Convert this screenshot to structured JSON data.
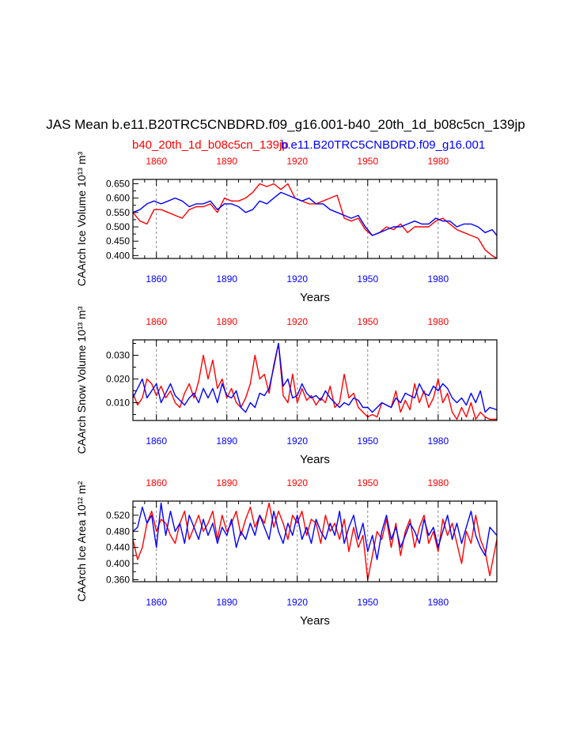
{
  "title": "JAS Mean b.e11.B20TRC5CNBDRD.f09_g16.001-b40_20th_1d_b08c5cn_139jp",
  "legend": {
    "red_name": "b40_20th_1d_b08c5cn_139jp",
    "blue_name": "b.e11.B20TRC5CNBDRD.f09_g16.001"
  },
  "colors": {
    "red": "#ff0000",
    "blue": "#0000ff",
    "axis": "#000000",
    "grid": "#888888"
  },
  "chart_data": [
    {
      "type": "line",
      "title": "",
      "xlabel": "Years",
      "ylabel": "CAArch Ice Volume 10¹³ m³",
      "xlim": [
        1850,
        2005
      ],
      "ylim": [
        0.39,
        0.665
      ],
      "xticks": [
        "1860",
        "1890",
        "1920",
        "1950",
        "1980"
      ],
      "yticks": [
        "0.400",
        "0.450",
        "0.500",
        "0.550",
        "0.600",
        "0.650"
      ],
      "grid_x": [
        1860,
        1890,
        1920,
        1950,
        1980
      ],
      "series": [
        {
          "name": "b40_20th_1d_b08c5cn_139jp",
          "color": "red",
          "x": [
            1850,
            1853,
            1856,
            1859,
            1862,
            1865,
            1868,
            1871,
            1874,
            1877,
            1880,
            1883,
            1886,
            1889,
            1892,
            1895,
            1898,
            1901,
            1904,
            1907,
            1910,
            1913,
            1916,
            1919,
            1922,
            1925,
            1928,
            1931,
            1934,
            1937,
            1940,
            1943,
            1946,
            1949,
            1952,
            1955,
            1958,
            1961,
            1964,
            1967,
            1970,
            1973,
            1976,
            1979,
            1982,
            1985,
            1988,
            1991,
            1994,
            1997,
            2000,
            2003,
            2005
          ],
          "y": [
            0.55,
            0.52,
            0.51,
            0.56,
            0.56,
            0.55,
            0.54,
            0.53,
            0.56,
            0.57,
            0.57,
            0.58,
            0.55,
            0.6,
            0.59,
            0.59,
            0.6,
            0.62,
            0.65,
            0.64,
            0.65,
            0.63,
            0.65,
            0.6,
            0.59,
            0.58,
            0.58,
            0.59,
            0.6,
            0.61,
            0.53,
            0.52,
            0.53,
            0.49,
            0.47,
            0.48,
            0.5,
            0.49,
            0.51,
            0.48,
            0.5,
            0.5,
            0.5,
            0.52,
            0.53,
            0.51,
            0.49,
            0.48,
            0.47,
            0.46,
            0.42,
            0.4,
            0.39
          ]
        },
        {
          "name": "b.e11.B20TRC5CNBDRD.f09_g16.001",
          "color": "blue",
          "x": [
            1850,
            1853,
            1856,
            1859,
            1862,
            1865,
            1868,
            1871,
            1874,
            1877,
            1880,
            1883,
            1886,
            1889,
            1892,
            1895,
            1898,
            1901,
            1904,
            1907,
            1910,
            1913,
            1916,
            1919,
            1922,
            1925,
            1928,
            1931,
            1934,
            1937,
            1940,
            1943,
            1946,
            1949,
            1952,
            1955,
            1958,
            1961,
            1964,
            1967,
            1970,
            1973,
            1976,
            1979,
            1982,
            1985,
            1988,
            1991,
            1994,
            1997,
            2000,
            2003,
            2005
          ],
          "y": [
            0.55,
            0.56,
            0.58,
            0.59,
            0.58,
            0.59,
            0.6,
            0.59,
            0.57,
            0.58,
            0.58,
            0.59,
            0.56,
            0.58,
            0.58,
            0.57,
            0.55,
            0.56,
            0.59,
            0.58,
            0.6,
            0.62,
            0.61,
            0.6,
            0.59,
            0.6,
            0.58,
            0.58,
            0.56,
            0.55,
            0.54,
            0.53,
            0.54,
            0.5,
            0.47,
            0.48,
            0.49,
            0.5,
            0.5,
            0.51,
            0.52,
            0.51,
            0.51,
            0.53,
            0.52,
            0.52,
            0.5,
            0.51,
            0.51,
            0.5,
            0.48,
            0.49,
            0.47
          ]
        }
      ]
    },
    {
      "type": "line",
      "title": "",
      "xlabel": "Years",
      "ylabel": "CAArch Snow Volume 10¹³ m³",
      "xlim": [
        1850,
        2005
      ],
      "ylim": [
        0.0025,
        0.0365
      ],
      "xticks": [
        "1860",
        "1890",
        "1920",
        "1950",
        "1980"
      ],
      "yticks": [
        "0.010",
        "0.020",
        "0.030"
      ],
      "grid_x": [
        1860,
        1890,
        1920,
        1950,
        1980
      ],
      "series": [
        {
          "name": "b40_20th_1d_b08c5cn_139jp",
          "color": "red",
          "x": [
            1850,
            1852,
            1854,
            1856,
            1858,
            1860,
            1862,
            1864,
            1866,
            1868,
            1870,
            1872,
            1874,
            1876,
            1878,
            1880,
            1882,
            1884,
            1886,
            1888,
            1890,
            1892,
            1894,
            1896,
            1898,
            1900,
            1902,
            1904,
            1906,
            1908,
            1910,
            1912,
            1914,
            1916,
            1918,
            1920,
            1922,
            1924,
            1926,
            1928,
            1930,
            1932,
            1934,
            1936,
            1938,
            1940,
            1942,
            1944,
            1946,
            1948,
            1950,
            1952,
            1954,
            1956,
            1958,
            1960,
            1962,
            1964,
            1966,
            1968,
            1970,
            1972,
            1974,
            1976,
            1978,
            1980,
            1982,
            1984,
            1986,
            1988,
            1990,
            1992,
            1994,
            1996,
            1998,
            2000,
            2002,
            2005
          ],
          "y": [
            0.014,
            0.009,
            0.012,
            0.02,
            0.018,
            0.013,
            0.017,
            0.012,
            0.015,
            0.01,
            0.008,
            0.014,
            0.018,
            0.012,
            0.019,
            0.03,
            0.02,
            0.028,
            0.016,
            0.02,
            0.012,
            0.016,
            0.01,
            0.008,
            0.012,
            0.018,
            0.03,
            0.02,
            0.022,
            0.014,
            0.026,
            0.035,
            0.013,
            0.01,
            0.022,
            0.01,
            0.016,
            0.011,
            0.013,
            0.009,
            0.012,
            0.01,
            0.017,
            0.008,
            0.01,
            0.022,
            0.012,
            0.014,
            0.008,
            0.006,
            0.004,
            0.005,
            0.004,
            0.01,
            0.009,
            0.008,
            0.015,
            0.006,
            0.011,
            0.007,
            0.018,
            0.01,
            0.015,
            0.008,
            0.012,
            0.02,
            0.01,
            0.014,
            0.006,
            0.003,
            0.008,
            0.004,
            0.01,
            0.003,
            0.006,
            0.004,
            0.003,
            0.003
          ]
        },
        {
          "name": "b.e11.B20TRC5CNBDRD.f09_g16.001",
          "color": "blue",
          "x": [
            1850,
            1852,
            1854,
            1856,
            1858,
            1860,
            1862,
            1864,
            1866,
            1868,
            1870,
            1872,
            1874,
            1876,
            1878,
            1880,
            1882,
            1884,
            1886,
            1888,
            1890,
            1892,
            1894,
            1896,
            1898,
            1900,
            1902,
            1904,
            1906,
            1908,
            1910,
            1912,
            1914,
            1916,
            1918,
            1920,
            1922,
            1924,
            1926,
            1928,
            1930,
            1932,
            1934,
            1936,
            1938,
            1940,
            1942,
            1944,
            1946,
            1948,
            1950,
            1952,
            1954,
            1956,
            1958,
            1960,
            1962,
            1964,
            1966,
            1968,
            1970,
            1972,
            1974,
            1976,
            1978,
            1980,
            1982,
            1984,
            1986,
            1988,
            1990,
            1992,
            1994,
            1996,
            1998,
            2000,
            2002,
            2005
          ],
          "y": [
            0.012,
            0.016,
            0.02,
            0.012,
            0.015,
            0.018,
            0.01,
            0.014,
            0.018,
            0.013,
            0.011,
            0.009,
            0.012,
            0.014,
            0.01,
            0.016,
            0.012,
            0.016,
            0.01,
            0.018,
            0.013,
            0.012,
            0.015,
            0.008,
            0.006,
            0.01,
            0.008,
            0.014,
            0.013,
            0.016,
            0.025,
            0.035,
            0.017,
            0.02,
            0.012,
            0.013,
            0.018,
            0.014,
            0.012,
            0.013,
            0.011,
            0.015,
            0.012,
            0.01,
            0.008,
            0.01,
            0.009,
            0.012,
            0.011,
            0.008,
            0.008,
            0.006,
            0.008,
            0.01,
            0.009,
            0.008,
            0.012,
            0.01,
            0.014,
            0.013,
            0.012,
            0.018,
            0.014,
            0.013,
            0.017,
            0.015,
            0.018,
            0.016,
            0.012,
            0.01,
            0.012,
            0.009,
            0.014,
            0.01,
            0.015,
            0.006,
            0.008,
            0.007
          ]
        }
      ]
    },
    {
      "type": "line",
      "title": "",
      "xlabel": "Years",
      "ylabel": "CAArch Ice Area 10¹² m²",
      "xlim": [
        1850,
        2005
      ],
      "ylim": [
        0.355,
        0.555
      ],
      "xticks": [
        "1860",
        "1890",
        "1920",
        "1950",
        "1980"
      ],
      "yticks": [
        "0.360",
        "0.400",
        "0.440",
        "0.480",
        "0.520"
      ],
      "grid_x": [
        1860,
        1890,
        1920,
        1950,
        1980
      ],
      "series": [
        {
          "name": "b40_20th_1d_b08c5cn_139jp",
          "color": "red",
          "x": [
            1850,
            1852,
            1854,
            1856,
            1858,
            1860,
            1862,
            1864,
            1866,
            1868,
            1870,
            1872,
            1874,
            1876,
            1878,
            1880,
            1882,
            1884,
            1886,
            1888,
            1890,
            1892,
            1894,
            1896,
            1898,
            1900,
            1902,
            1904,
            1906,
            1908,
            1910,
            1912,
            1914,
            1916,
            1918,
            1920,
            1922,
            1924,
            1926,
            1928,
            1930,
            1932,
            1934,
            1936,
            1938,
            1940,
            1942,
            1944,
            1946,
            1948,
            1950,
            1952,
            1954,
            1956,
            1958,
            1960,
            1962,
            1964,
            1966,
            1968,
            1970,
            1972,
            1974,
            1976,
            1978,
            1980,
            1982,
            1984,
            1986,
            1988,
            1990,
            1992,
            1994,
            1996,
            1998,
            2000,
            2002,
            2005
          ],
          "y": [
            0.46,
            0.41,
            0.44,
            0.5,
            0.53,
            0.48,
            0.51,
            0.5,
            0.47,
            0.45,
            0.5,
            0.53,
            0.46,
            0.49,
            0.52,
            0.48,
            0.5,
            0.53,
            0.46,
            0.52,
            0.48,
            0.5,
            0.53,
            0.47,
            0.51,
            0.54,
            0.49,
            0.52,
            0.5,
            0.55,
            0.49,
            0.53,
            0.5,
            0.46,
            0.52,
            0.5,
            0.53,
            0.47,
            0.51,
            0.5,
            0.45,
            0.52,
            0.48,
            0.5,
            0.46,
            0.51,
            0.43,
            0.49,
            0.44,
            0.47,
            0.36,
            0.42,
            0.48,
            0.46,
            0.51,
            0.44,
            0.5,
            0.42,
            0.48,
            0.51,
            0.44,
            0.49,
            0.52,
            0.45,
            0.48,
            0.43,
            0.51,
            0.47,
            0.5,
            0.45,
            0.4,
            0.48,
            0.45,
            0.52,
            0.46,
            0.43,
            0.37,
            0.46
          ]
        },
        {
          "name": "b.e11.B20TRC5CNBDRD.f09_g16.001",
          "color": "blue",
          "x": [
            1850,
            1852,
            1854,
            1856,
            1858,
            1860,
            1862,
            1864,
            1866,
            1868,
            1870,
            1872,
            1874,
            1876,
            1878,
            1880,
            1882,
            1884,
            1886,
            1888,
            1890,
            1892,
            1894,
            1896,
            1898,
            1900,
            1902,
            1904,
            1906,
            1908,
            1910,
            1912,
            1914,
            1916,
            1918,
            1920,
            1922,
            1924,
            1926,
            1928,
            1930,
            1932,
            1934,
            1936,
            1938,
            1940,
            1942,
            1944,
            1946,
            1948,
            1950,
            1952,
            1954,
            1956,
            1958,
            1960,
            1962,
            1964,
            1966,
            1968,
            1970,
            1972,
            1974,
            1976,
            1978,
            1980,
            1982,
            1984,
            1986,
            1988,
            1990,
            1992,
            1994,
            1996,
            1998,
            2000,
            2002,
            2005
          ],
          "y": [
            0.48,
            0.49,
            0.54,
            0.5,
            0.52,
            0.44,
            0.55,
            0.47,
            0.53,
            0.48,
            0.5,
            0.45,
            0.52,
            0.49,
            0.46,
            0.51,
            0.47,
            0.5,
            0.45,
            0.49,
            0.47,
            0.51,
            0.44,
            0.48,
            0.46,
            0.5,
            0.47,
            0.52,
            0.49,
            0.46,
            0.53,
            0.48,
            0.45,
            0.5,
            0.47,
            0.52,
            0.46,
            0.49,
            0.45,
            0.51,
            0.48,
            0.46,
            0.5,
            0.47,
            0.53,
            0.45,
            0.49,
            0.52,
            0.46,
            0.5,
            0.43,
            0.47,
            0.41,
            0.48,
            0.52,
            0.46,
            0.49,
            0.44,
            0.47,
            0.5,
            0.48,
            0.45,
            0.51,
            0.47,
            0.49,
            0.44,
            0.48,
            0.52,
            0.46,
            0.5,
            0.45,
            0.49,
            0.53,
            0.47,
            0.44,
            0.42,
            0.49,
            0.47
          ]
        }
      ]
    }
  ]
}
